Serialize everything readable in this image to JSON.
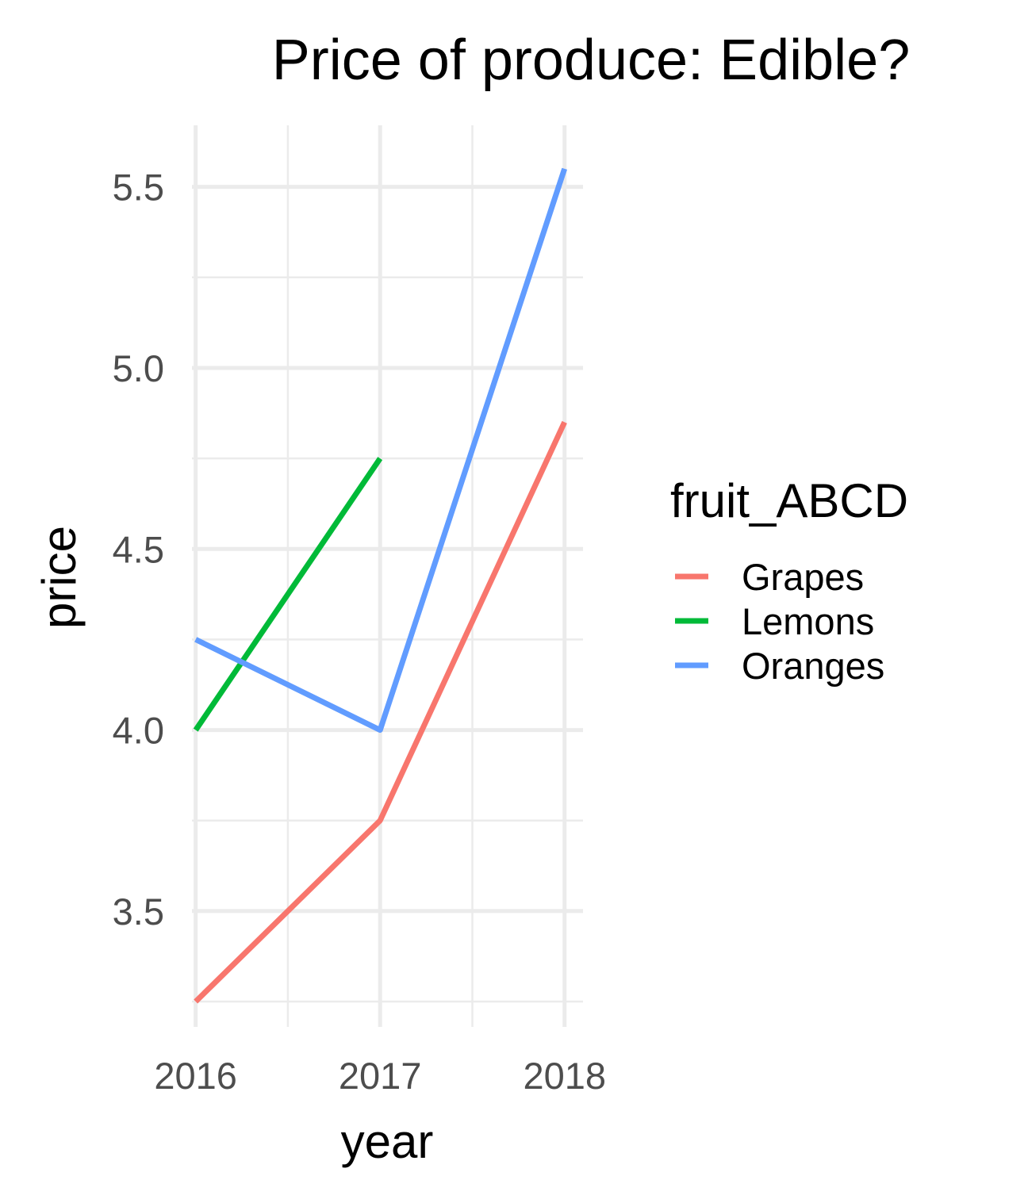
{
  "chart_data": {
    "type": "line",
    "title": "Price of produce: Edible?",
    "xlabel": "year",
    "ylabel": "price",
    "x": [
      2016,
      2017,
      2018
    ],
    "x_ticks": [
      "2016",
      "2017",
      "2018"
    ],
    "y_ticks": [
      "3.5",
      "4.0",
      "4.5",
      "5.0",
      "5.5"
    ],
    "y_tick_values": [
      3.5,
      4.0,
      4.5,
      5.0,
      5.5
    ],
    "xlim": [
      2015.98,
      2018.1
    ],
    "ylim": [
      3.18,
      5.67
    ],
    "grid": true,
    "legend": {
      "title": "fruit_ABCD",
      "placement": "right"
    },
    "series": [
      {
        "name": "Grapes",
        "color": "#F8766D",
        "x": [
          2016,
          2017,
          2018
        ],
        "values": [
          3.25,
          3.75,
          4.85
        ]
      },
      {
        "name": "Lemons",
        "color": "#00BA38",
        "x": [
          2016,
          2017
        ],
        "values": [
          4.0,
          4.75
        ]
      },
      {
        "name": "Oranges",
        "color": "#619CFF",
        "x": [
          2016,
          2017,
          2018
        ],
        "values": [
          4.25,
          4.0,
          5.55
        ]
      }
    ]
  }
}
